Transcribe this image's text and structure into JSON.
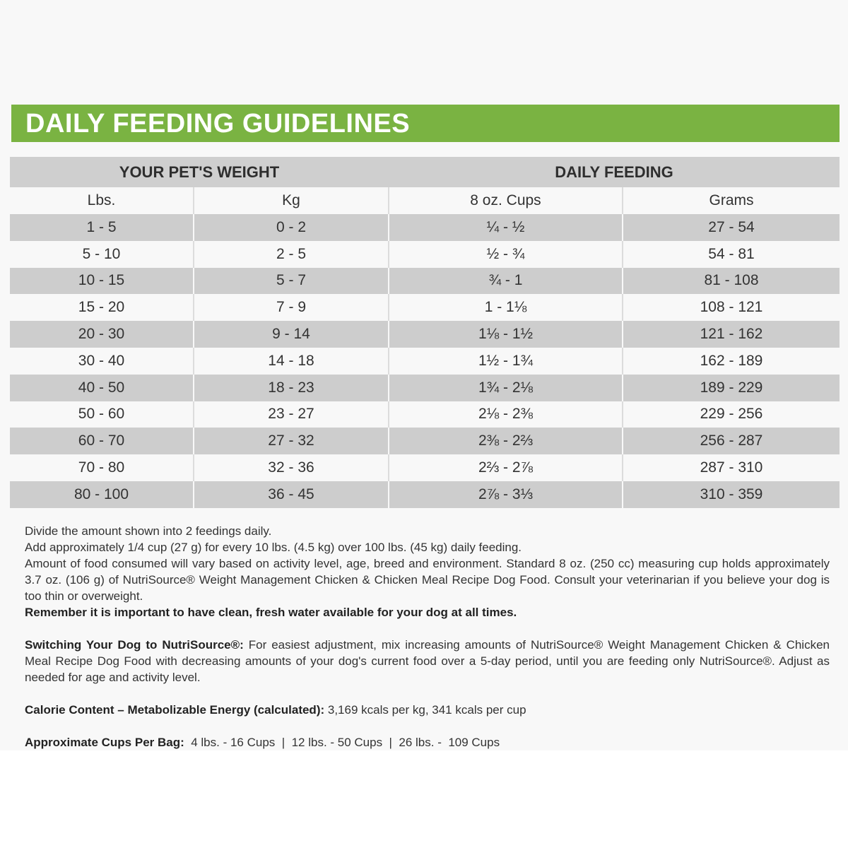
{
  "title": "DAILY FEEDING GUIDELINES",
  "colors": {
    "banner": "#7ab342",
    "row_shade": "#cdcdcd"
  },
  "table": {
    "group_headers": [
      "YOUR PET'S WEIGHT",
      "DAILY FEEDING"
    ],
    "columns": [
      "Lbs.",
      "Kg",
      "8 oz. Cups",
      "Grams"
    ],
    "rows": [
      [
        "1 - 5",
        "0 - 2",
        "¼ - ½",
        "27 - 54"
      ],
      [
        "5 - 10",
        "2 - 5",
        "½ - ¾",
        "54 - 81"
      ],
      [
        "10 - 15",
        "5 - 7",
        "¾ - 1",
        "81 - 108"
      ],
      [
        "15 - 20",
        "7 - 9",
        "1 - 1⅛",
        "108 - 121"
      ],
      [
        "20 - 30",
        "9 - 14",
        "1⅛ - 1½",
        "121 - 162"
      ],
      [
        "30 - 40",
        "14 - 18",
        "1½ - 1¾",
        "162 - 189"
      ],
      [
        "40 - 50",
        "18 - 23",
        "1¾ - 2⅛",
        "189 - 229"
      ],
      [
        "50 - 60",
        "23 - 27",
        "2⅛ - 2⅜",
        "229 - 256"
      ],
      [
        "60 - 70",
        "27 - 32",
        "2⅜ - 2⅔",
        "256 - 287"
      ],
      [
        "70 - 80",
        "32 - 36",
        "2⅔ - 2⅞",
        "287 - 310"
      ],
      [
        "80 - 100",
        "36 - 45",
        "2⅞ - 3⅓",
        "310 - 359"
      ]
    ]
  },
  "notes": {
    "line1": "Divide the amount shown into 2 feedings daily.",
    "line2": "Add approximately 1/4 cup (27 g) for every 10 lbs. (4.5 kg) over 100 lbs. (45 kg) daily feeding.",
    "line3": "Amount of food consumed will vary based on activity level, age, breed and environment. Standard 8 oz. (250 cc) measuring cup holds approximately 3.7 oz. (106 g) of NutriSource® Weight Management Chicken & Chicken Meal Recipe Dog Food. Consult your veterinarian if you believe your dog is too thin or overweight.",
    "water": "Remember it is important to have clean, fresh water available for your dog at all times.",
    "switch_label": "Switching Your Dog to NutriSource®:",
    "switch_text": " For easiest adjustment, mix increasing amounts of NutriSource® Weight Management Chicken & Chicken Meal Recipe Dog Food with decreasing amounts of your dog's current food over a 5-day period, until you are feeding only NutriSource®. Adjust as needed for age and activity level.",
    "calorie_label": "Calorie Content – Metabolizable Energy (calculated):",
    "calorie_text": " 3,169 kcals per kg, 341 kcals per cup",
    "cups_label": "Approximate Cups Per Bag:",
    "cups_text": "  4 lbs. - 16 Cups  |  12 lbs. - 50 Cups  |  26 lbs. -  109 Cups"
  }
}
